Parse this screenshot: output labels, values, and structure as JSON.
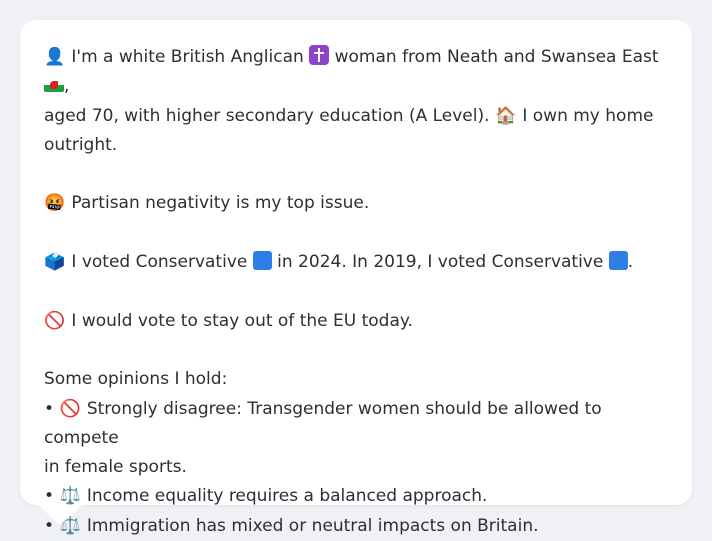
{
  "profile": {
    "line1_a": "I'm a white British Anglican",
    "line1_b": "woman from Neath and Swansea East",
    "line1_c": ",",
    "line2_a": "aged 70, with higher secondary education (A Level).",
    "line2_b": "I own my home",
    "line3": "outright."
  },
  "issue": {
    "text": "Partisan negativity is my top issue."
  },
  "vote": {
    "a": "I voted Conservative",
    "b": "in 2024. In 2019, I voted Conservative",
    "c": "."
  },
  "eu": {
    "text": "I would vote to stay out of the EU today."
  },
  "opinions": {
    "heading": "Some opinions I hold:",
    "items": [
      {
        "bullet": "•",
        "text": "Strongly disagree: Transgender women should be allowed to compete",
        "cont": "in female sports."
      },
      {
        "bullet": "•",
        "text": "Income equality requires a balanced approach."
      },
      {
        "bullet": "•",
        "text": "Immigration has mixed or neutral impacts on Britain."
      }
    ]
  },
  "icons": {
    "person": "👤",
    "house": "🏠",
    "angry": "🤬",
    "ballot": "🗳️",
    "no_entry": "🚫",
    "scales": "⚖️"
  },
  "colors": {
    "background": "#f0f1f4",
    "card": "#ffffff",
    "text": "#2b2f36",
    "conservative_blue": "#2f7ee8"
  }
}
